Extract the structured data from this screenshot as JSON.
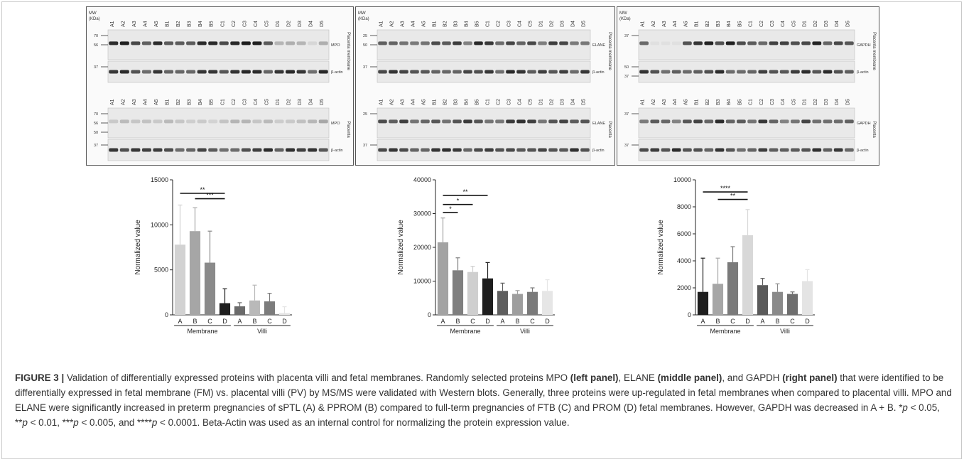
{
  "blots": [
    {
      "id": "left",
      "mw_label": "MW",
      "kda_label": "(KDa)",
      "lane_labels": [
        "A1",
        "A2",
        "A3",
        "A4",
        "A5",
        "B1",
        "B2",
        "B3",
        "B4",
        "B5",
        "C1",
        "C2",
        "C3",
        "C4",
        "C5",
        "D1",
        "D2",
        "D3",
        "D4",
        "D5"
      ],
      "tissues": [
        {
          "tissue": "Placenta membrane",
          "markers": [
            {
              "name": "MPO",
              "kda": [
                "70",
                "56"
              ]
            },
            {
              "name": "β-actin",
              "kda": [
                "37"
              ]
            }
          ]
        },
        {
          "tissue": "Placenta",
          "markers": [
            {
              "name": "MPO",
              "kda": [
                "70",
                "56",
                "50"
              ]
            },
            {
              "name": "β-actin",
              "kda": [
                "37"
              ]
            }
          ]
        }
      ]
    },
    {
      "id": "middle",
      "mw_label": "MW",
      "kda_label": "(KDa)",
      "lane_labels": [
        "A1",
        "A2",
        "A3",
        "A4",
        "A5",
        "B1",
        "B2",
        "B3",
        "B4",
        "B5",
        "C1",
        "C2",
        "C3",
        "C4",
        "C5",
        "D1",
        "D2",
        "D3",
        "D4",
        "D5"
      ],
      "tissues": [
        {
          "tissue": "Placenta membrane",
          "markers": [
            {
              "name": "ELANE",
              "kda": [
                "25",
                "50"
              ]
            },
            {
              "name": "β-actin",
              "kda": [
                "37"
              ]
            }
          ]
        },
        {
          "tissue": "Placenta",
          "markers": [
            {
              "name": "ELANE",
              "kda": [
                "25"
              ]
            },
            {
              "name": "β-actin",
              "kda": [
                "37"
              ]
            }
          ]
        }
      ]
    },
    {
      "id": "right",
      "mw_label": "MW",
      "kda_label": "(KDa)",
      "lane_labels": [
        "A1",
        "A2",
        "A3",
        "A4",
        "A5",
        "B1",
        "B2",
        "B3",
        "B4",
        "B5",
        "C1",
        "C2",
        "C3",
        "C4",
        "C5",
        "D1",
        "D2",
        "D3",
        "D4",
        "D5"
      ],
      "tissues": [
        {
          "tissue": "Placenta membrane",
          "markers": [
            {
              "name": "GAPDH",
              "kda": [
                "37"
              ]
            },
            {
              "name": "β-actin",
              "kda": [
                "50",
                "37"
              ]
            }
          ]
        },
        {
          "tissue": "Placenta",
          "markers": [
            {
              "name": "GAPDH",
              "kda": [
                "37"
              ]
            },
            {
              "name": "β-actin",
              "kda": [
                "37"
              ]
            }
          ]
        }
      ]
    }
  ],
  "chart_data": [
    {
      "type": "bar",
      "categories": [
        "A",
        "B",
        "C",
        "D",
        "A",
        "B",
        "C",
        "D"
      ],
      "groups": [
        {
          "label": "Membrane",
          "span": [
            0,
            3
          ]
        },
        {
          "label": "Villi",
          "span": [
            4,
            7
          ]
        }
      ],
      "values": [
        7800,
        9300,
        5800,
        1300,
        950,
        1600,
        1500,
        200
      ],
      "errors": [
        4400,
        2600,
        3500,
        1600,
        400,
        1700,
        900,
        700
      ],
      "colors": [
        "#d2d2d2",
        "#a6a6a6",
        "#8a8a8a",
        "#1e1e1e",
        "#6a6a6a",
        "#b9b9b9",
        "#7c7c7c",
        "#e4e4e4"
      ],
      "ylabel": "Normalized value",
      "ylim": [
        0,
        15000
      ],
      "yticks": [
        "0",
        "5000",
        "10000",
        "15000"
      ],
      "significance": [
        {
          "from": 0,
          "to": 3,
          "label": "**",
          "y": 13500
        },
        {
          "from": 1,
          "to": 3,
          "label": "***",
          "y": 12900
        }
      ]
    },
    {
      "type": "bar",
      "categories": [
        "A",
        "B",
        "C",
        "D",
        "A",
        "B",
        "C",
        "D"
      ],
      "groups": [
        {
          "label": "Membrane",
          "span": [
            0,
            3
          ]
        },
        {
          "label": "Villi",
          "span": [
            4,
            7
          ]
        }
      ],
      "values": [
        21500,
        13200,
        12700,
        10800,
        7100,
        6200,
        6800,
        7100
      ],
      "errors": [
        7200,
        3700,
        1700,
        4700,
        2300,
        1000,
        1200,
        3300
      ],
      "colors": [
        "#a3a3a3",
        "#7f7f7f",
        "#cfcfcf",
        "#1e1e1e",
        "#5e5e5e",
        "#9e9e9e",
        "#7a7a7a",
        "#e6e6e6"
      ],
      "ylabel": "Normalized value",
      "ylim": [
        0,
        40000
      ],
      "yticks": [
        "0",
        "10000",
        "20000",
        "30000",
        "40000"
      ],
      "significance": [
        {
          "from": 0,
          "to": 1,
          "label": "*",
          "y": 30300
        },
        {
          "from": 0,
          "to": 2,
          "label": "*",
          "y": 32700
        },
        {
          "from": 0,
          "to": 3,
          "label": "**",
          "y": 35400
        }
      ]
    },
    {
      "type": "bar",
      "categories": [
        "A",
        "B",
        "C",
        "D",
        "A",
        "B",
        "C",
        "D"
      ],
      "groups": [
        {
          "label": "Membrane",
          "span": [
            0,
            3
          ]
        },
        {
          "label": "Villi",
          "span": [
            4,
            7
          ]
        }
      ],
      "values": [
        1700,
        2300,
        3900,
        5900,
        2200,
        1700,
        1550,
        2500
      ],
      "errors": [
        2500,
        1900,
        1150,
        1900,
        500,
        600,
        150,
        850
      ],
      "colors": [
        "#1e1e1e",
        "#a6a6a6",
        "#7a7a7a",
        "#d8d8d8",
        "#5a5a5a",
        "#8a8a8a",
        "#6e6e6e",
        "#e4e4e4"
      ],
      "ylabel": "Normalized value",
      "ylim": [
        0,
        10000
      ],
      "yticks": [
        "0",
        "2000",
        "4000",
        "6000",
        "8000",
        "10000"
      ],
      "significance": [
        {
          "from": 0,
          "to": 3,
          "label": "****",
          "y": 9100
        },
        {
          "from": 1,
          "to": 3,
          "label": "**",
          "y": 8550
        }
      ]
    }
  ],
  "caption": {
    "lead": "FIGURE 3 |",
    "p1": " Validation of differentially expressed proteins with placenta villi and fetal membranes. Randomly selected proteins MPO ",
    "b1": "(left panel)",
    "p2": ", ELANE ",
    "b2": "(middle panel)",
    "p3": ", and GAPDH ",
    "b3": "(right panel)",
    "p4": " that were identified to be differentially expressed in fetal membrane (FM) vs. placental villi (PV) by MS/MS were validated with Western blots. Generally, three proteins were up-regulated in fetal membranes when compared to placental villi. MPO and ELANE were significantly increased in preterm pregnancies of sPTL (A) & PPROM (B) compared to full-term pregnancies of FTB (C) and PROM (D) fetal membranes. However, GAPDH was decreased in A + B. *",
    "i1": "p",
    "p5": " < 0.05, **",
    "i2": "p",
    "p6": " < 0.01, ***",
    "i3": "p",
    "p7": " < 0.005, and ****",
    "i4": "p",
    "p8": " < 0.0001. Beta-Actin was used as an internal control for normalizing the protein expression value."
  }
}
